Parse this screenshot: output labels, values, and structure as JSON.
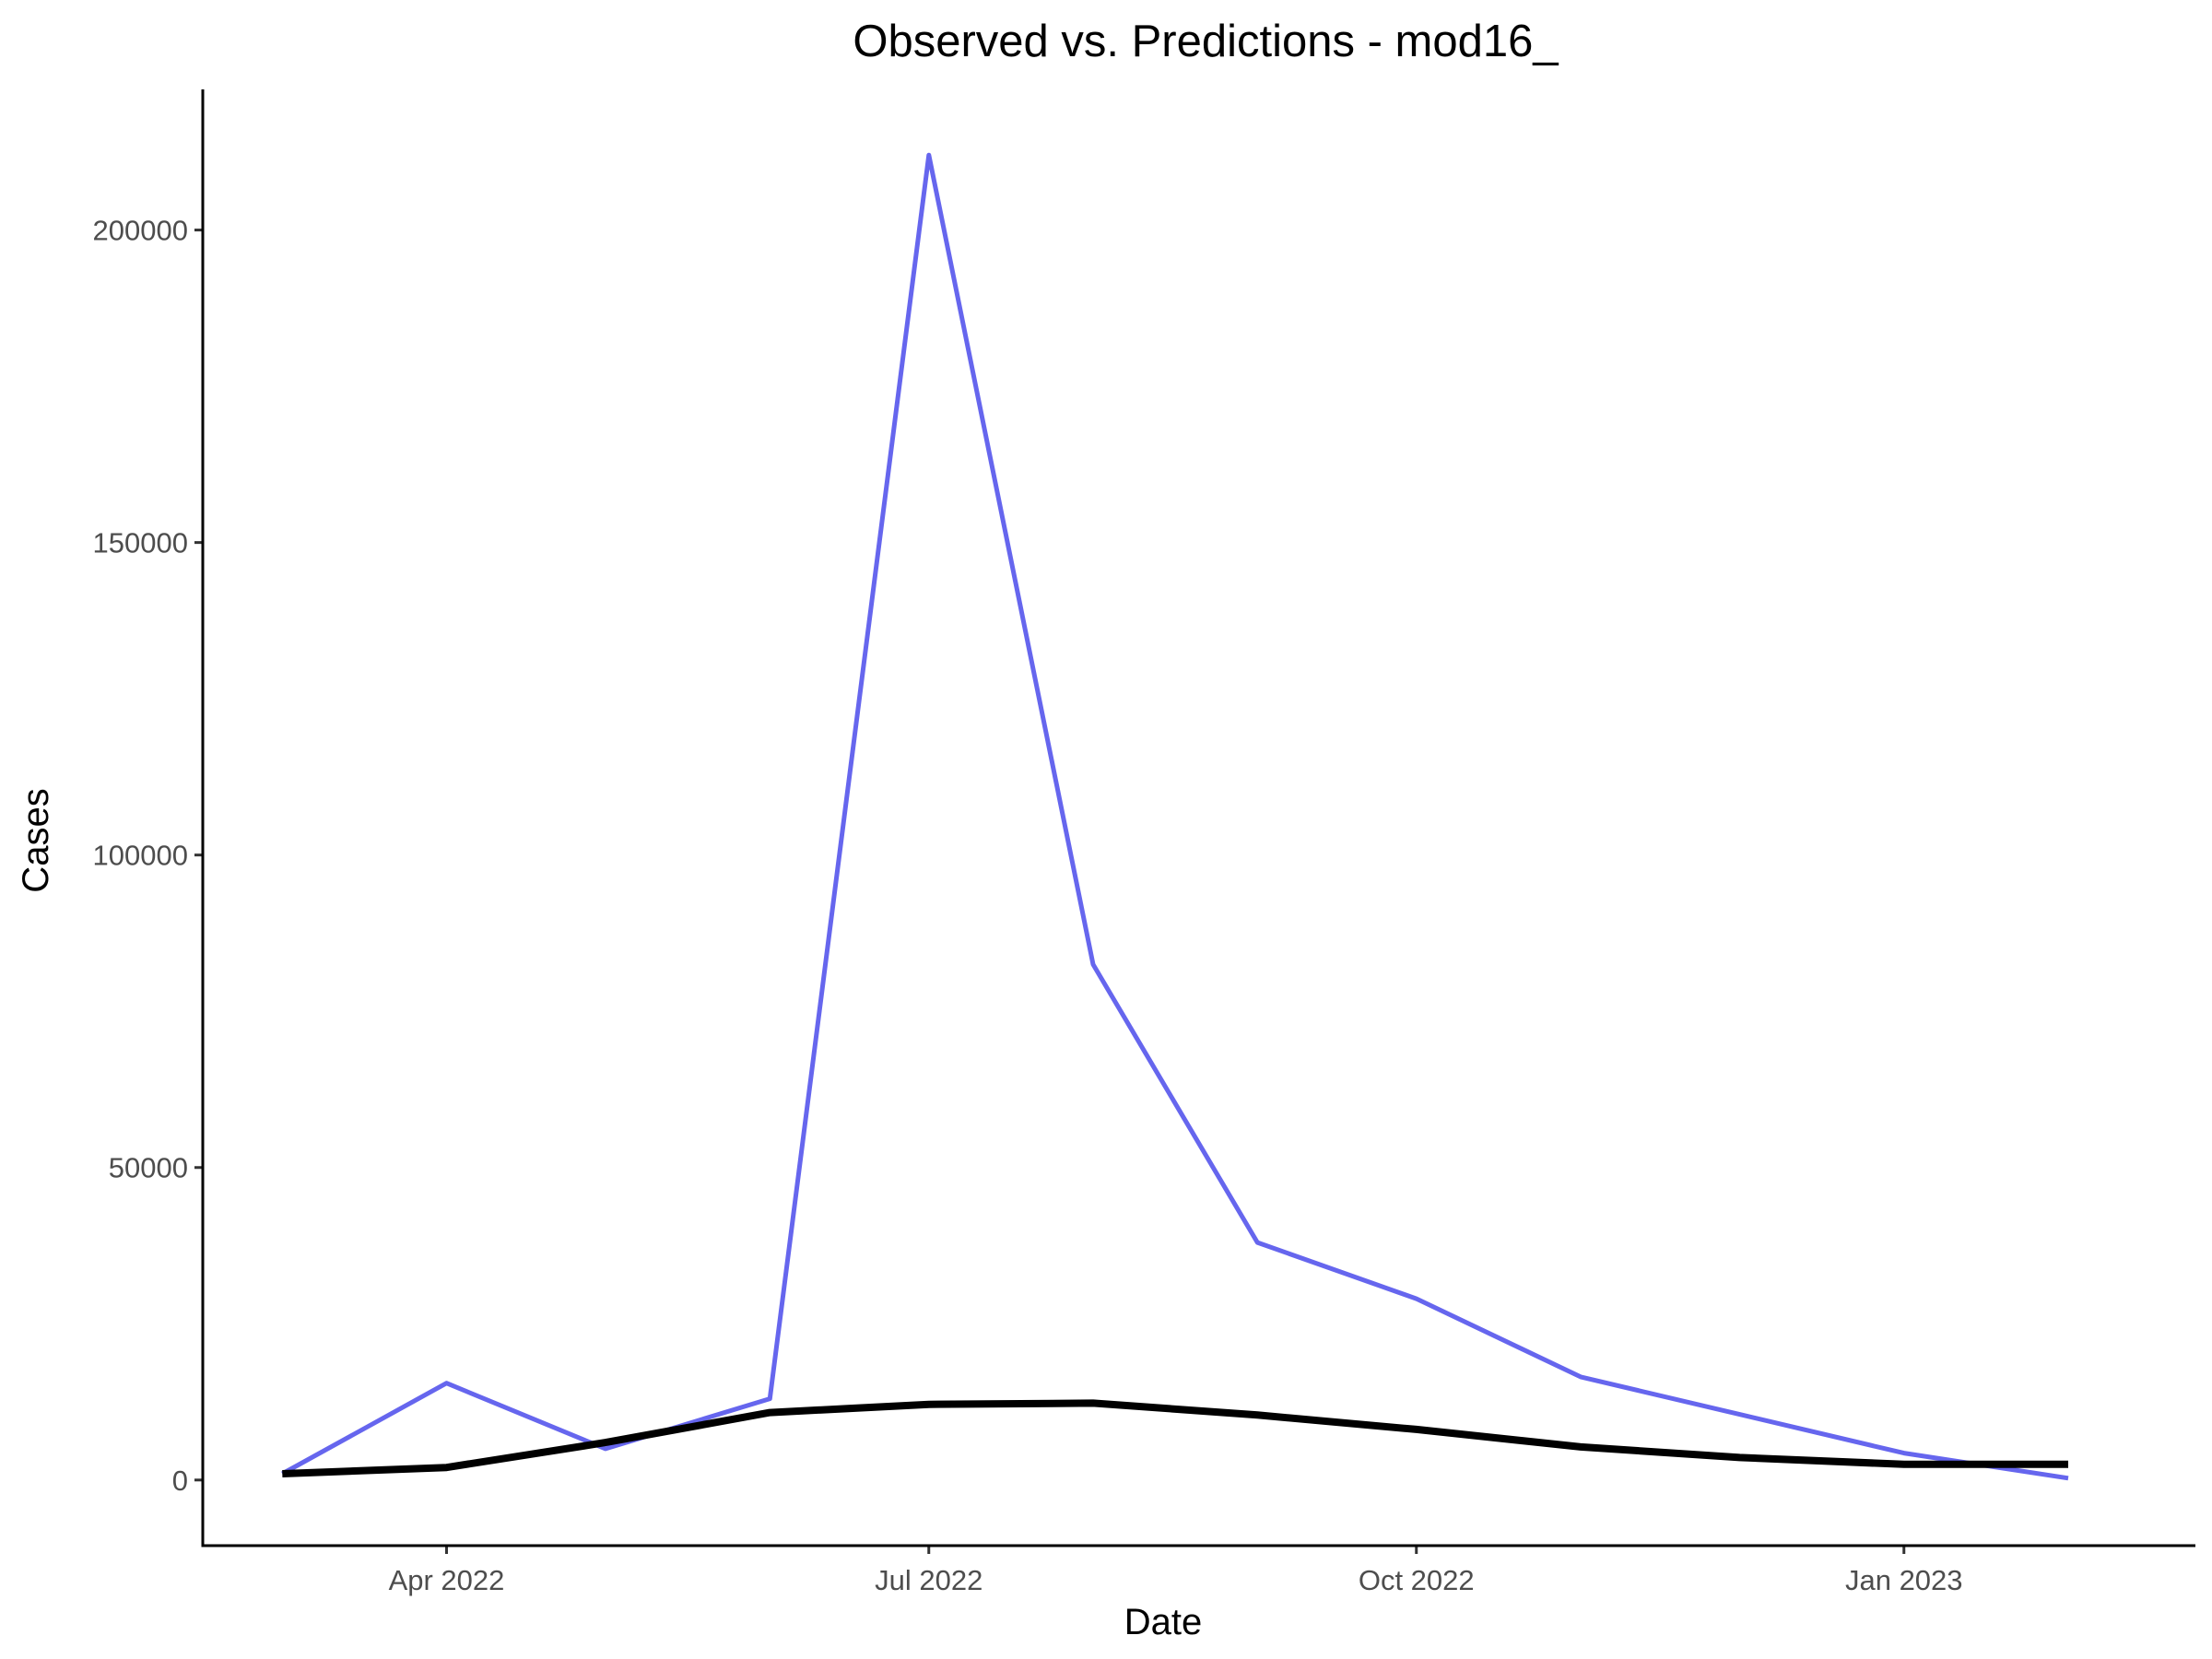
{
  "chart_data": {
    "type": "line",
    "title": "Observed vs. Predictions - mod16_",
    "xlabel": "Date",
    "ylabel": "Cases",
    "x": [
      "2022-03-01",
      "2022-04-01",
      "2022-05-01",
      "2022-06-01",
      "2022-07-01",
      "2022-08-01",
      "2022-09-01",
      "2022-10-01",
      "2022-11-01",
      "2022-12-01",
      "2023-01-01",
      "2023-02-01"
    ],
    "series": [
      {
        "color": "#6666ee",
        "values": [
          1000,
          15500,
          5000,
          13000,
          212000,
          82500,
          38000,
          29000,
          16500,
          10500,
          4300,
          300
        ]
      },
      {
        "color": "#000000",
        "values": [
          1000,
          2000,
          6000,
          10800,
          12100,
          12300,
          10400,
          8100,
          5300,
          3600,
          2500,
          2500
        ]
      }
    ],
    "xlim": [
      "2022-02-14",
      "2023-02-25"
    ],
    "ylim": [
      -10500,
      222500
    ],
    "xticks": [
      {
        "date": "2022-04-01",
        "label": "Apr 2022"
      },
      {
        "date": "2022-07-01",
        "label": "Jul 2022"
      },
      {
        "date": "2022-10-01",
        "label": "Oct 2022"
      },
      {
        "date": "2023-01-01",
        "label": "Jan 2023"
      }
    ],
    "yticks": [
      {
        "value": 0,
        "label": "0"
      },
      {
        "value": 50000,
        "label": "50000"
      },
      {
        "value": 100000,
        "label": "100000"
      },
      {
        "value": 150000,
        "label": "150000"
      },
      {
        "value": 200000,
        "label": "200000"
      }
    ],
    "grid": false,
    "legend": "none"
  }
}
